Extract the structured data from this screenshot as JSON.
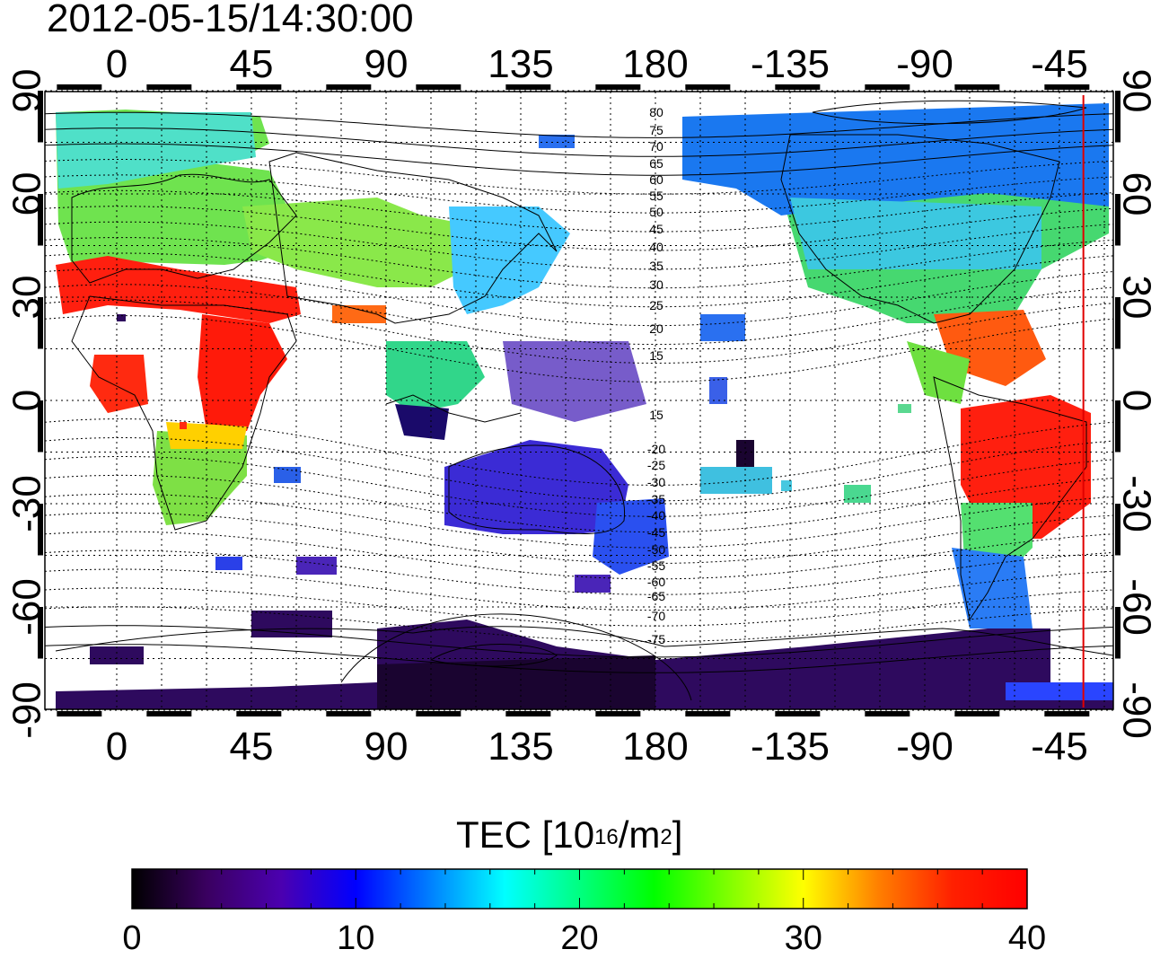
{
  "title": "2012-05-15/14:30:00",
  "map": {
    "top_lon_ticks": [
      "0",
      "45",
      "90",
      "135",
      "180",
      "-135",
      "-90",
      "-45"
    ],
    "bottom_lon_ticks": [
      "0",
      "45",
      "90",
      "135",
      "180",
      "-135",
      "-90",
      "-45"
    ],
    "left_lat_ticks": [
      "90",
      "60",
      "30",
      "0",
      "-30",
      "-60",
      "-90"
    ],
    "right_lat_ticks": [
      "90",
      "60",
      "30",
      "0",
      "-30",
      "-60",
      "-90"
    ],
    "magnetic_lat_labels_north": [
      "80",
      "75",
      "70",
      "65",
      "60",
      "55",
      "50",
      "45",
      "40",
      "35",
      "30",
      "25",
      "20",
      "15"
    ],
    "magnetic_lat_labels_south": [
      "15",
      "-20",
      "-25",
      "-30",
      "-35",
      "-40",
      "-45",
      "-50",
      "-55",
      "-60",
      "-65",
      "-70",
      "-75"
    ],
    "terminator_lon": -37,
    "colors": {
      "terminator": "#e00000",
      "grid": "#000000"
    }
  },
  "colorbar": {
    "label_prefix": "TEC  [10",
    "label_exp": "16",
    "label_mid": "/m",
    "label_exp2": "2",
    "label_suffix": "]",
    "ticks": [
      "0",
      "10",
      "20",
      "30",
      "40"
    ],
    "min": 0,
    "max": 40,
    "colors": [
      "#000000",
      "#3a0060",
      "#4b00b0",
      "#0000ff",
      "#0080ff",
      "#00ffff",
      "#00ff80",
      "#00ff00",
      "#80ff00",
      "#ffff00",
      "#ff8000",
      "#ff2000",
      "#ff0000"
    ]
  }
}
